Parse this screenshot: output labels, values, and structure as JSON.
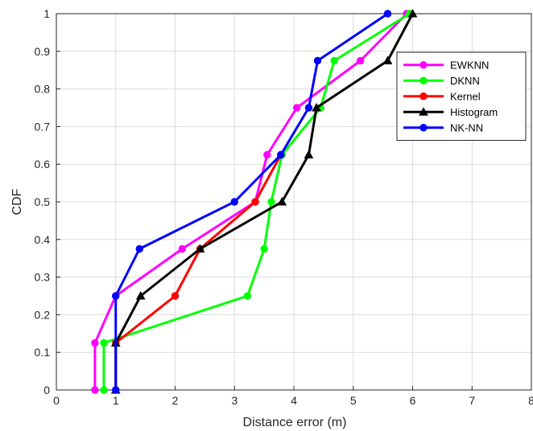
{
  "chart_data": {
    "type": "line",
    "title": "",
    "xlabel": "Distance error (m)",
    "ylabel": "CDF",
    "xlim": [
      0,
      8
    ],
    "ylim": [
      0,
      1
    ],
    "xticks": [
      "0",
      "1",
      "2",
      "3",
      "4",
      "5",
      "6",
      "7",
      "8"
    ],
    "yticks": [
      "0",
      "0.1",
      "0.2",
      "0.3",
      "0.4",
      "0.5",
      "0.6",
      "0.7",
      "0.8",
      "0.9",
      "1"
    ],
    "grid": true,
    "legend_position": "top-right",
    "series": [
      {
        "name": "EWKNN",
        "color": "#ff00ff",
        "marker": "circle",
        "points": [
          [
            0.65,
            0
          ],
          [
            0.65,
            0.125
          ],
          [
            1.0,
            0.25
          ],
          [
            2.12,
            0.375
          ],
          [
            3.35,
            0.5
          ],
          [
            3.55,
            0.625
          ],
          [
            4.05,
            0.75
          ],
          [
            5.12,
            0.875
          ],
          [
            5.9,
            1.0
          ]
        ]
      },
      {
        "name": "DKNN",
        "color": "#00ff00",
        "marker": "circle",
        "points": [
          [
            0.8,
            0
          ],
          [
            0.8,
            0.125
          ],
          [
            3.22,
            0.25
          ],
          [
            3.5,
            0.375
          ],
          [
            3.62,
            0.5
          ],
          [
            3.8,
            0.625
          ],
          [
            4.45,
            0.75
          ],
          [
            4.68,
            0.875
          ],
          [
            5.95,
            1.0
          ]
        ]
      },
      {
        "name": "Kernel",
        "color": "#ff0000",
        "marker": "circle",
        "points": [
          [
            1.0,
            0
          ],
          [
            1.0,
            0.125
          ],
          [
            2.0,
            0.25
          ],
          [
            2.42,
            0.375
          ],
          [
            3.35,
            0.5
          ],
          [
            3.78,
            0.625
          ]
        ]
      },
      {
        "name": "Histogram",
        "color": "#000000",
        "marker": "triangle",
        "points": [
          [
            1.0,
            0
          ],
          [
            1.0,
            0.125
          ],
          [
            1.42,
            0.25
          ],
          [
            2.42,
            0.375
          ],
          [
            3.8,
            0.5
          ],
          [
            4.25,
            0.625
          ],
          [
            4.38,
            0.75
          ],
          [
            5.58,
            0.875
          ],
          [
            6.0,
            1.0
          ]
        ]
      },
      {
        "name": "NK-NN",
        "color": "#0000ff",
        "marker": "circle",
        "points": [
          [
            1.0,
            0
          ],
          [
            1.0,
            0.25
          ],
          [
            1.4,
            0.375
          ],
          [
            3.0,
            0.5
          ],
          [
            3.78,
            0.625
          ],
          [
            4.25,
            0.75
          ],
          [
            4.4,
            0.875
          ],
          [
            5.58,
            1.0
          ]
        ]
      }
    ]
  }
}
